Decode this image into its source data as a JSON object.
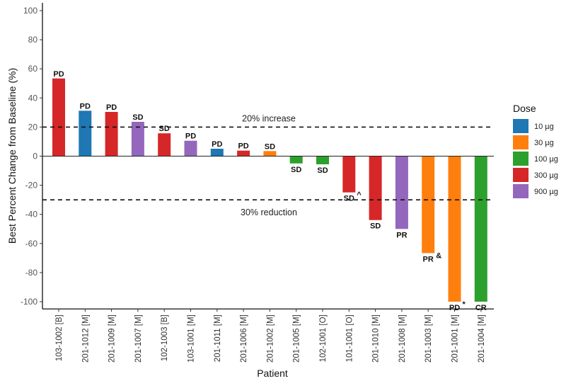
{
  "chart_data": {
    "type": "bar",
    "title": "",
    "xlabel": "Patient",
    "ylabel": "Best Percent Change from Baseline (%)",
    "ylim": [
      -105,
      105
    ],
    "yticks": [
      100,
      80,
      60,
      40,
      20,
      0,
      -20,
      -40,
      -60,
      -80,
      -100
    ],
    "grid": false,
    "legend": {
      "title": "Dose",
      "placement": "right",
      "entries": [
        {
          "label": "10 µg",
          "color": "#1f77b4"
        },
        {
          "label": "30 µg",
          "color": "#ff7f0e"
        },
        {
          "label": "100 µg",
          "color": "#2ca02c"
        },
        {
          "label": "300 µg",
          "color": "#d62728"
        },
        {
          "label": "900 µg",
          "color": "#9467bd"
        }
      ]
    },
    "reference_lines": [
      {
        "value": 20,
        "label": "20% increase"
      },
      {
        "value": -30,
        "label": "30% reduction"
      }
    ],
    "categories": [
      "103-1002 [B]",
      "201-1012 [M]",
      "201-1009 [M]",
      "201-1007 [M]",
      "102-1003 [B]",
      "103-1001 [M]",
      "201-1011 [M]",
      "201-1006 [M]",
      "201-1002 [M]",
      "201-1005 [M]",
      "102-1001 [O]",
      "101-1001 [O]",
      "201-1010 [M]",
      "201-1008 [M]",
      "201-1003 [M]",
      "201-1001 [M]",
      "201-1004 [M]"
    ],
    "values": [
      53.4,
      31.2,
      30.4,
      23.6,
      15.7,
      10.6,
      5.1,
      3.8,
      3.5,
      -5.0,
      -5.6,
      -24.9,
      -43.9,
      -50.0,
      -66.6,
      -100,
      -100
    ],
    "doses": [
      "300 µg",
      "10 µg",
      "300 µg",
      "900 µg",
      "300 µg",
      "900 µg",
      "10 µg",
      "300 µg",
      "30 µg",
      "100 µg",
      "100 µg",
      "300 µg",
      "300 µg",
      "900 µg",
      "30 µg",
      "30 µg",
      "100 µg"
    ],
    "responses": [
      "PD",
      "PD",
      "PD",
      "SD",
      "SD",
      "PD",
      "PD",
      "PD",
      "SD",
      "SD",
      "SD",
      "SD^",
      "SD",
      "PR",
      "PR&",
      "PD*",
      "CR"
    ]
  }
}
